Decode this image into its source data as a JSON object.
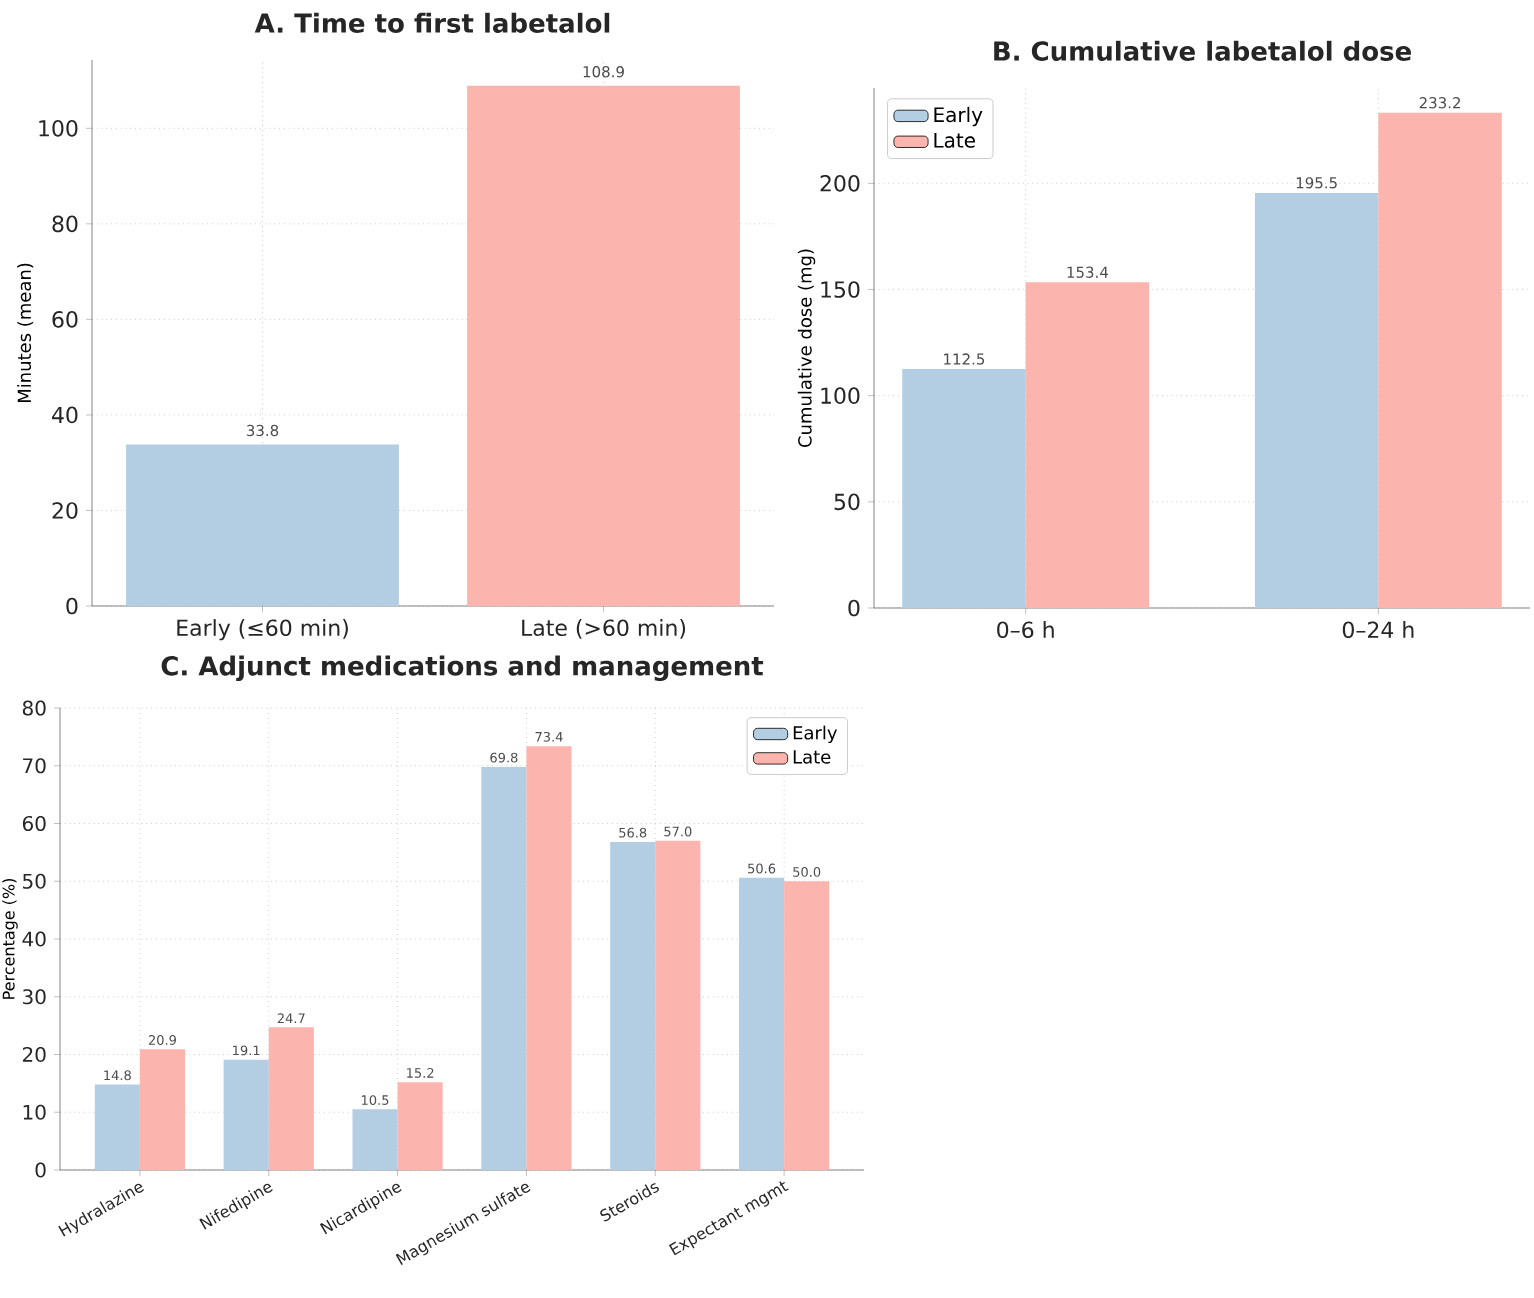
{
  "chart_data": [
    {
      "type": "bar",
      "title": "A. Time to first labetalol",
      "ylabel": "Minutes (mean)",
      "categories": [
        "Early (≤60 min)",
        "Late (>60 min)"
      ],
      "values": [
        33.8,
        108.9
      ],
      "colors": [
        "#b3cde3",
        "#fbb4ae"
      ],
      "ylim": [
        0,
        114.3
      ],
      "yticks": [
        0,
        20,
        40,
        60,
        80,
        100
      ],
      "grid": true,
      "data_labels": true
    },
    {
      "type": "bar",
      "title": "B. Cumulative labetalol dose",
      "ylabel": "Cumulative dose (mg)",
      "categories": [
        "0–6 h",
        "0–24 h"
      ],
      "series": [
        {
          "name": "Early",
          "color": "#b3cde3",
          "values": [
            112.5,
            195.5
          ]
        },
        {
          "name": "Late",
          "color": "#fbb4ae",
          "values": [
            153.4,
            233.2
          ]
        }
      ],
      "ylim": [
        0,
        244.9
      ],
      "yticks": [
        0,
        50,
        100,
        150,
        200
      ],
      "grid": true,
      "legend": "top left",
      "data_labels": true
    },
    {
      "type": "bar",
      "title": "C. Adjunct medications and management",
      "ylabel": "Percentage (%)",
      "categories": [
        "Hydralazine",
        "Nifedipine",
        "Nicardipine",
        "Magnesium sulfate",
        "Steroids",
        "Expectant mgmt"
      ],
      "series": [
        {
          "name": "Early",
          "color": "#b3cde3",
          "values": [
            14.8,
            19.1,
            10.5,
            69.8,
            56.8,
            50.6
          ],
          "value_labels": [
            "14.8",
            "19.1",
            "10.5",
            "69.8",
            "56.8",
            "50.6"
          ]
        },
        {
          "name": "Late",
          "color": "#fbb4ae",
          "values": [
            20.9,
            24.7,
            15.2,
            73.4,
            57.0,
            50.0
          ],
          "value_labels": [
            "20.9",
            "24.7",
            "15.2",
            "73.4",
            "57.0",
            "50.0"
          ]
        }
      ],
      "ylim": [
        0,
        80
      ],
      "yticks": [
        0,
        10,
        20,
        30,
        40,
        50,
        60,
        70,
        80
      ],
      "grid": true,
      "legend": "top right"
    }
  ]
}
